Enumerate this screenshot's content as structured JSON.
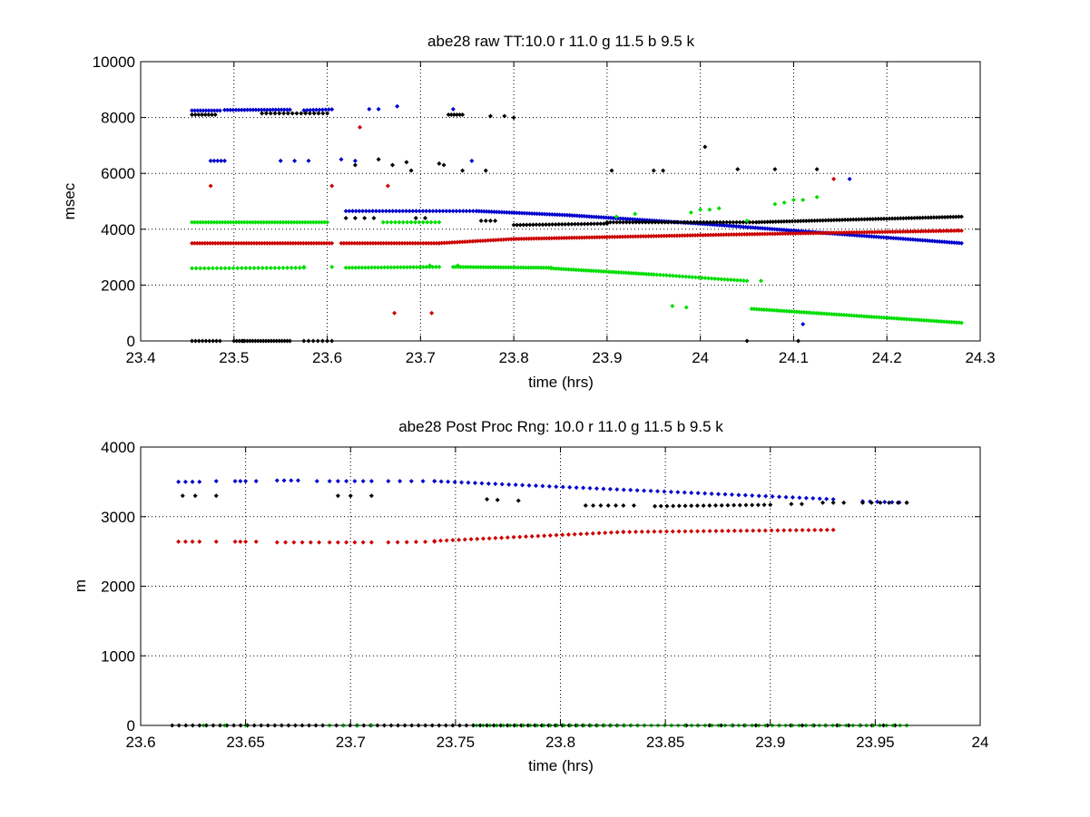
{
  "chart_data": [
    {
      "type": "scatter",
      "title": "abe28 raw TT:10.0 r  11.0 g  11.5 b  9.5 k",
      "xlabel": "time (hrs)",
      "ylabel": "msec",
      "xlim": [
        23.4,
        24.3
      ],
      "ylim": [
        0,
        10000
      ],
      "xticks": [
        "23.4",
        "23.5",
        "23.6",
        "23.7",
        "23.8",
        "23.9",
        "24",
        "24.1",
        "24.2",
        "24.3"
      ],
      "yticks": [
        "0",
        "2000",
        "4000",
        "6000",
        "8000",
        "10000"
      ],
      "grid": true,
      "marker": "dot",
      "series": [
        {
          "color": "#0000cc",
          "points": [
            {
              "x0": 23.455,
              "x1": 23.485,
              "y0": 8250,
              "y1": 8250,
              "n": 11
            },
            {
              "x0": 23.49,
              "x1": 23.56,
              "y0": 8270,
              "y1": 8280,
              "n": 24
            },
            {
              "x0": 23.575,
              "x1": 23.605,
              "y0": 8260,
              "y1": 8290,
              "n": 10
            },
            {
              "x0": 23.475,
              "x1": 23.49,
              "y0": 6450,
              "y1": 6450,
              "n": 5
            },
            {
              "x0": 23.55,
              "x1": 23.58,
              "y0": 6450,
              "y1": 6450,
              "n": 3
            },
            {
              "x0": 23.62,
              "x1": 23.76,
              "y0": 4650,
              "y1": 4650,
              "n": 40
            },
            {
              "x0": 23.76,
              "x1": 23.86,
              "y0": 4650,
              "y1": 4500,
              "n": 38
            },
            {
              "x0": 23.86,
              "x1": 24.0,
              "y0": 4500,
              "y1": 4200,
              "n": 55
            },
            {
              "x0": 24.0,
              "x1": 24.1,
              "y0": 4200,
              "y1": 3950,
              "n": 40
            },
            {
              "x0": 24.1,
              "x1": 24.28,
              "y0": 3950,
              "y1": 3500,
              "n": 70
            }
          ],
          "scatter": [
            [
              23.63,
              6450
            ],
            [
              23.645,
              8300
            ],
            [
              23.655,
              8300
            ],
            [
              23.675,
              8400
            ],
            [
              23.735,
              8300
            ],
            [
              23.755,
              6450
            ],
            [
              24.16,
              5800
            ],
            [
              24.11,
              600
            ],
            [
              23.615,
              6500
            ]
          ]
        },
        {
          "color": "#000000",
          "points": [
            {
              "x0": 23.455,
              "x1": 23.48,
              "y0": 8100,
              "y1": 8100,
              "n": 8
            },
            {
              "x0": 23.53,
              "x1": 23.6,
              "y0": 8150,
              "y1": 8150,
              "n": 16
            },
            {
              "x0": 23.455,
              "x1": 23.485,
              "y0": 0,
              "y1": 0,
              "n": 9
            },
            {
              "x0": 23.5,
              "x1": 23.56,
              "y0": 0,
              "y1": 0,
              "n": 22
            },
            {
              "x0": 23.575,
              "x1": 23.605,
              "y0": 0,
              "y1": 0,
              "n": 7
            },
            {
              "x0": 23.62,
              "x1": 23.65,
              "y0": 4400,
              "y1": 4400,
              "n": 4
            },
            {
              "x0": 23.73,
              "x1": 23.745,
              "y0": 8100,
              "y1": 8100,
              "n": 6
            },
            {
              "x0": 23.765,
              "x1": 23.78,
              "y0": 4300,
              "y1": 4300,
              "n": 4
            },
            {
              "x0": 23.8,
              "x1": 23.9,
              "y0": 4150,
              "y1": 4200,
              "n": 30
            },
            {
              "x0": 23.9,
              "x1": 24.0,
              "y0": 4250,
              "y1": 4250,
              "n": 30
            },
            {
              "x0": 24.0,
              "x1": 24.06,
              "y0": 4250,
              "y1": 4250,
              "n": 18
            },
            {
              "x0": 24.06,
              "x1": 24.28,
              "y0": 4250,
              "y1": 4450,
              "n": 75
            }
          ],
          "scatter": [
            [
              23.63,
              6300
            ],
            [
              23.655,
              6500
            ],
            [
              23.67,
              6300
            ],
            [
              23.685,
              6400
            ],
            [
              23.69,
              6100
            ],
            [
              23.695,
              4400
            ],
            [
              23.705,
              4400
            ],
            [
              23.72,
              6350
            ],
            [
              23.725,
              6300
            ],
            [
              23.745,
              6100
            ],
            [
              23.77,
              6100
            ],
            [
              23.775,
              8050
            ],
            [
              23.79,
              8050
            ],
            [
              23.8,
              8000
            ],
            [
              23.905,
              6100
            ],
            [
              23.96,
              6100
            ],
            [
              23.95,
              6100
            ],
            [
              24.005,
              6950
            ],
            [
              24.04,
              6150
            ],
            [
              24.08,
              6150
            ],
            [
              24.125,
              6150
            ],
            [
              24.05,
              0
            ],
            [
              24.105,
              0
            ],
            [
              23.51,
              0
            ]
          ]
        },
        {
          "color": "#cc0000",
          "points": [
            {
              "x0": 23.455,
              "x1": 23.605,
              "y0": 3500,
              "y1": 3500,
              "n": 55
            },
            {
              "x0": 23.615,
              "x1": 23.72,
              "y0": 3500,
              "y1": 3500,
              "n": 38
            },
            {
              "x0": 23.72,
              "x1": 23.8,
              "y0": 3500,
              "y1": 3650,
              "n": 30
            },
            {
              "x0": 23.8,
              "x1": 23.9,
              "y0": 3650,
              "y1": 3720,
              "n": 38
            },
            {
              "x0": 23.9,
              "x1": 24.05,
              "y0": 3720,
              "y1": 3820,
              "n": 55
            },
            {
              "x0": 24.05,
              "x1": 24.28,
              "y0": 3820,
              "y1": 3950,
              "n": 85
            }
          ],
          "scatter": [
            [
              23.475,
              5550
            ],
            [
              23.605,
              5550
            ],
            [
              23.635,
              7650
            ],
            [
              23.665,
              5550
            ],
            [
              23.672,
              1000
            ],
            [
              23.712,
              1000
            ],
            [
              24.143,
              5800
            ]
          ]
        },
        {
          "color": "#00dd00",
          "points": [
            {
              "x0": 23.455,
              "x1": 23.6,
              "y0": 4250,
              "y1": 4250,
              "n": 50
            },
            {
              "x0": 23.455,
              "x1": 23.575,
              "y0": 2600,
              "y1": 2620,
              "n": 28
            },
            {
              "x0": 23.62,
              "x1": 23.72,
              "y0": 2620,
              "y1": 2650,
              "n": 30
            },
            {
              "x0": 23.735,
              "x1": 23.84,
              "y0": 2650,
              "y1": 2620,
              "n": 40
            },
            {
              "x0": 23.84,
              "x1": 23.95,
              "y0": 2600,
              "y1": 2380,
              "n": 42
            },
            {
              "x0": 23.95,
              "x1": 24.05,
              "y0": 2380,
              "y1": 2150,
              "n": 30
            },
            {
              "x0": 24.055,
              "x1": 24.28,
              "y0": 1150,
              "y1": 650,
              "n": 85
            },
            {
              "x0": 23.66,
              "x1": 23.72,
              "y0": 4250,
              "y1": 4250,
              "n": 15
            }
          ],
          "scatter": [
            [
              23.575,
              2650
            ],
            [
              23.605,
              2650
            ],
            [
              23.71,
              2700
            ],
            [
              23.74,
              2700
            ],
            [
              23.91,
              4450
            ],
            [
              23.93,
              4550
            ],
            [
              23.97,
              1250
            ],
            [
              23.985,
              1200
            ],
            [
              23.99,
              4600
            ],
            [
              24.0,
              4700
            ],
            [
              24.01,
              4700
            ],
            [
              24.02,
              4750
            ],
            [
              24.08,
              4900
            ],
            [
              24.09,
              4950
            ],
            [
              24.1,
              5050
            ],
            [
              24.11,
              5050
            ],
            [
              24.125,
              5150
            ],
            [
              24.05,
              4300
            ],
            [
              24.065,
              2150
            ]
          ]
        }
      ]
    },
    {
      "type": "scatter",
      "title": "abe28 Post Proc Rng: 10.0 r  11.0 g  11.5 b  9.5  k",
      "xlabel": "time (hrs)",
      "ylabel": "m",
      "xlim": [
        23.6,
        24.0
      ],
      "ylim": [
        0,
        4000
      ],
      "xticks": [
        "23.6",
        "23.65",
        "23.7",
        "23.75",
        "23.8",
        "23.85",
        "23.9",
        "23.95",
        "24"
      ],
      "yticks": [
        "0",
        "1000",
        "2000",
        "3000",
        "4000"
      ],
      "grid": true,
      "marker": "dot",
      "series": [
        {
          "color": "#0000cc",
          "points": [
            {
              "x0": 23.618,
              "x1": 23.628,
              "y0": 3500,
              "y1": 3500,
              "n": 4
            },
            {
              "x0": 23.645,
              "x1": 23.65,
              "y0": 3510,
              "y1": 3510,
              "n": 3
            },
            {
              "x0": 23.665,
              "x1": 23.675,
              "y0": 3520,
              "y1": 3520,
              "n": 4
            },
            {
              "x0": 23.69,
              "x1": 23.71,
              "y0": 3510,
              "y1": 3510,
              "n": 6
            },
            {
              "x0": 23.718,
              "x1": 23.74,
              "y0": 3510,
              "y1": 3510,
              "n": 5
            },
            {
              "x0": 23.74,
              "x1": 23.93,
              "y0": 3510,
              "y1": 3250,
              "n": 60
            },
            {
              "x0": 23.944,
              "x1": 23.965,
              "y0": 3220,
              "y1": 3200,
              "n": 7
            }
          ],
          "scatter": [
            [
              23.636,
              3510
            ],
            [
              23.655,
              3510
            ],
            [
              23.684,
              3510
            ]
          ]
        },
        {
          "color": "#000000",
          "points": [
            {
              "x0": 23.812,
              "x1": 23.83,
              "y0": 3160,
              "y1": 3160,
              "n": 6
            },
            {
              "x0": 23.845,
              "x1": 23.9,
              "y0": 3150,
              "y1": 3170,
              "n": 20
            },
            {
              "x0": 23.615,
              "x1": 23.84,
              "y0": 0,
              "y1": 0,
              "n": 70
            },
            {
              "x0": 23.86,
              "x1": 23.965,
              "y0": 0,
              "y1": 0,
              "n": 20
            },
            {
              "x0": 23.944,
              "x1": 23.965,
              "y0": 3200,
              "y1": 3200,
              "n": 6
            }
          ],
          "scatter": [
            [
              23.62,
              3300
            ],
            [
              23.626,
              3300
            ],
            [
              23.636,
              3300
            ],
            [
              23.694,
              3300
            ],
            [
              23.7,
              3300
            ],
            [
              23.71,
              3300
            ],
            [
              23.765,
              3250
            ],
            [
              23.77,
              3240
            ],
            [
              23.78,
              3230
            ],
            [
              23.835,
              3160
            ],
            [
              23.91,
              3180
            ],
            [
              23.915,
              3180
            ],
            [
              23.925,
              3200
            ],
            [
              23.93,
              3200
            ],
            [
              23.935,
              3200
            ]
          ]
        },
        {
          "color": "#cc0000",
          "points": [
            {
              "x0": 23.618,
              "x1": 23.628,
              "y0": 2640,
              "y1": 2640,
              "n": 4
            },
            {
              "x0": 23.645,
              "x1": 23.65,
              "y0": 2640,
              "y1": 2640,
              "n": 3
            },
            {
              "x0": 23.665,
              "x1": 23.685,
              "y0": 2630,
              "y1": 2630,
              "n": 6
            },
            {
              "x0": 23.69,
              "x1": 23.71,
              "y0": 2630,
              "y1": 2630,
              "n": 6
            },
            {
              "x0": 23.718,
              "x1": 23.74,
              "y0": 2630,
              "y1": 2640,
              "n": 6
            },
            {
              "x0": 23.74,
              "x1": 23.83,
              "y0": 2650,
              "y1": 2780,
              "n": 32
            },
            {
              "x0": 23.83,
              "x1": 23.93,
              "y0": 2780,
              "y1": 2810,
              "n": 35
            }
          ],
          "scatter": [
            [
              23.636,
              2640
            ],
            [
              23.655,
              2640
            ]
          ]
        },
        {
          "color": "#00dd00",
          "points": [
            {
              "x0": 23.63,
              "x1": 23.65,
              "y0": 0,
              "y1": 0,
              "n": 3
            },
            {
              "x0": 23.69,
              "x1": 23.71,
              "y0": 0,
              "y1": 0,
              "n": 4
            },
            {
              "x0": 23.76,
              "x1": 23.965,
              "y0": 0,
              "y1": 0,
              "n": 65
            }
          ],
          "scatter": []
        }
      ]
    }
  ]
}
